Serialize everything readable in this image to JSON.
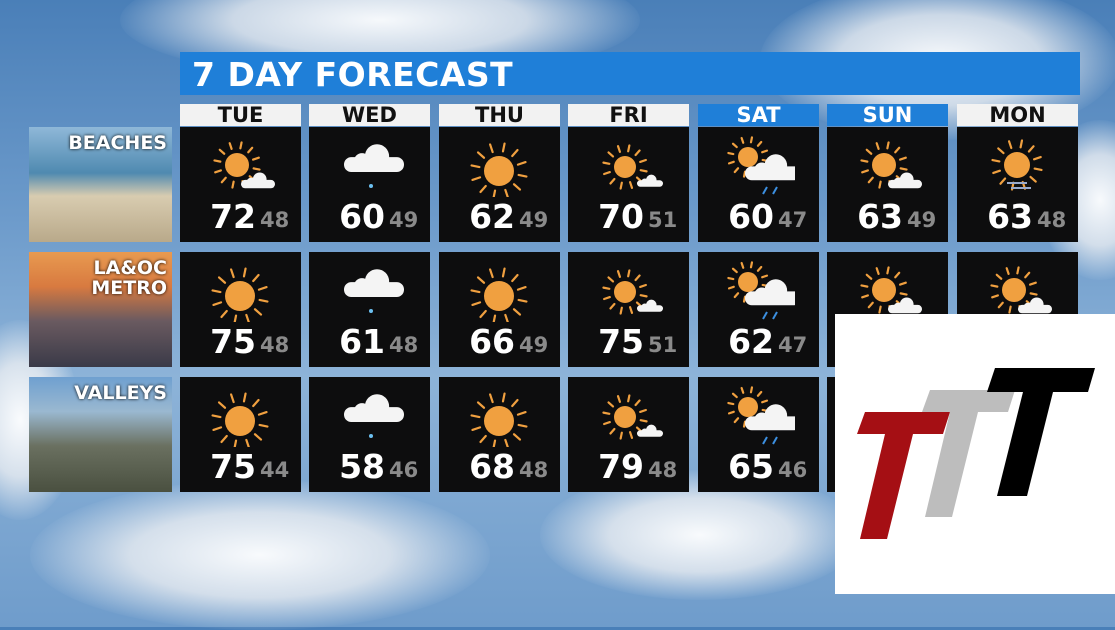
{
  "title": "7 DAY FORECAST",
  "days": [
    {
      "label": "TUE",
      "weekend": false
    },
    {
      "label": "WED",
      "weekend": false
    },
    {
      "label": "THU",
      "weekend": false
    },
    {
      "label": "FRI",
      "weekend": false
    },
    {
      "label": "SAT",
      "weekend": true
    },
    {
      "label": "SUN",
      "weekend": true
    },
    {
      "label": "MON",
      "weekend": false
    }
  ],
  "regions": [
    {
      "label": "BEACHES",
      "cells": [
        {
          "icon": "sun-cloud-icon",
          "hi": "72",
          "lo": "48"
        },
        {
          "icon": "cloud-drizzle-icon",
          "hi": "60",
          "lo": "49"
        },
        {
          "icon": "sun-icon",
          "hi": "62",
          "lo": "49"
        },
        {
          "icon": "sun-small-cloud-icon",
          "hi": "70",
          "lo": "51"
        },
        {
          "icon": "sun-cloud-rain-icon",
          "hi": "60",
          "lo": "47"
        },
        {
          "icon": "sun-cloud-icon",
          "hi": "63",
          "lo": "49"
        },
        {
          "icon": "sun-haze-icon",
          "hi": "63",
          "lo": "48"
        }
      ]
    },
    {
      "label": "LA&OC METRO",
      "cells": [
        {
          "icon": "sun-icon",
          "hi": "75",
          "lo": "48"
        },
        {
          "icon": "cloud-drizzle-icon",
          "hi": "61",
          "lo": "48"
        },
        {
          "icon": "sun-icon",
          "hi": "66",
          "lo": "49"
        },
        {
          "icon": "sun-small-cloud-icon",
          "hi": "75",
          "lo": "51"
        },
        {
          "icon": "sun-cloud-rain-icon",
          "hi": "62",
          "lo": "47"
        },
        {
          "icon": "sun-cloud-icon"
        },
        {
          "icon": "sun-cloud-icon"
        }
      ]
    },
    {
      "label": "VALLEYS",
      "cells": [
        {
          "icon": "sun-icon",
          "hi": "75",
          "lo": "44"
        },
        {
          "icon": "cloud-drizzle-icon",
          "hi": "58",
          "lo": "46"
        },
        {
          "icon": "sun-icon",
          "hi": "68",
          "lo": "48"
        },
        {
          "icon": "sun-small-cloud-icon",
          "hi": "79",
          "lo": "48"
        },
        {
          "icon": "sun-cloud-rain-icon",
          "hi": "65",
          "lo": "46"
        },
        {},
        {}
      ]
    }
  ],
  "colors": {
    "accent": "#1f7fd8",
    "sun": "#f0a040",
    "cell": "#0d0d0e",
    "logo_red": "#a50f14",
    "logo_gray": "#bdbdbd",
    "logo_black": "#000000"
  },
  "logo": {
    "text": "TTT"
  }
}
